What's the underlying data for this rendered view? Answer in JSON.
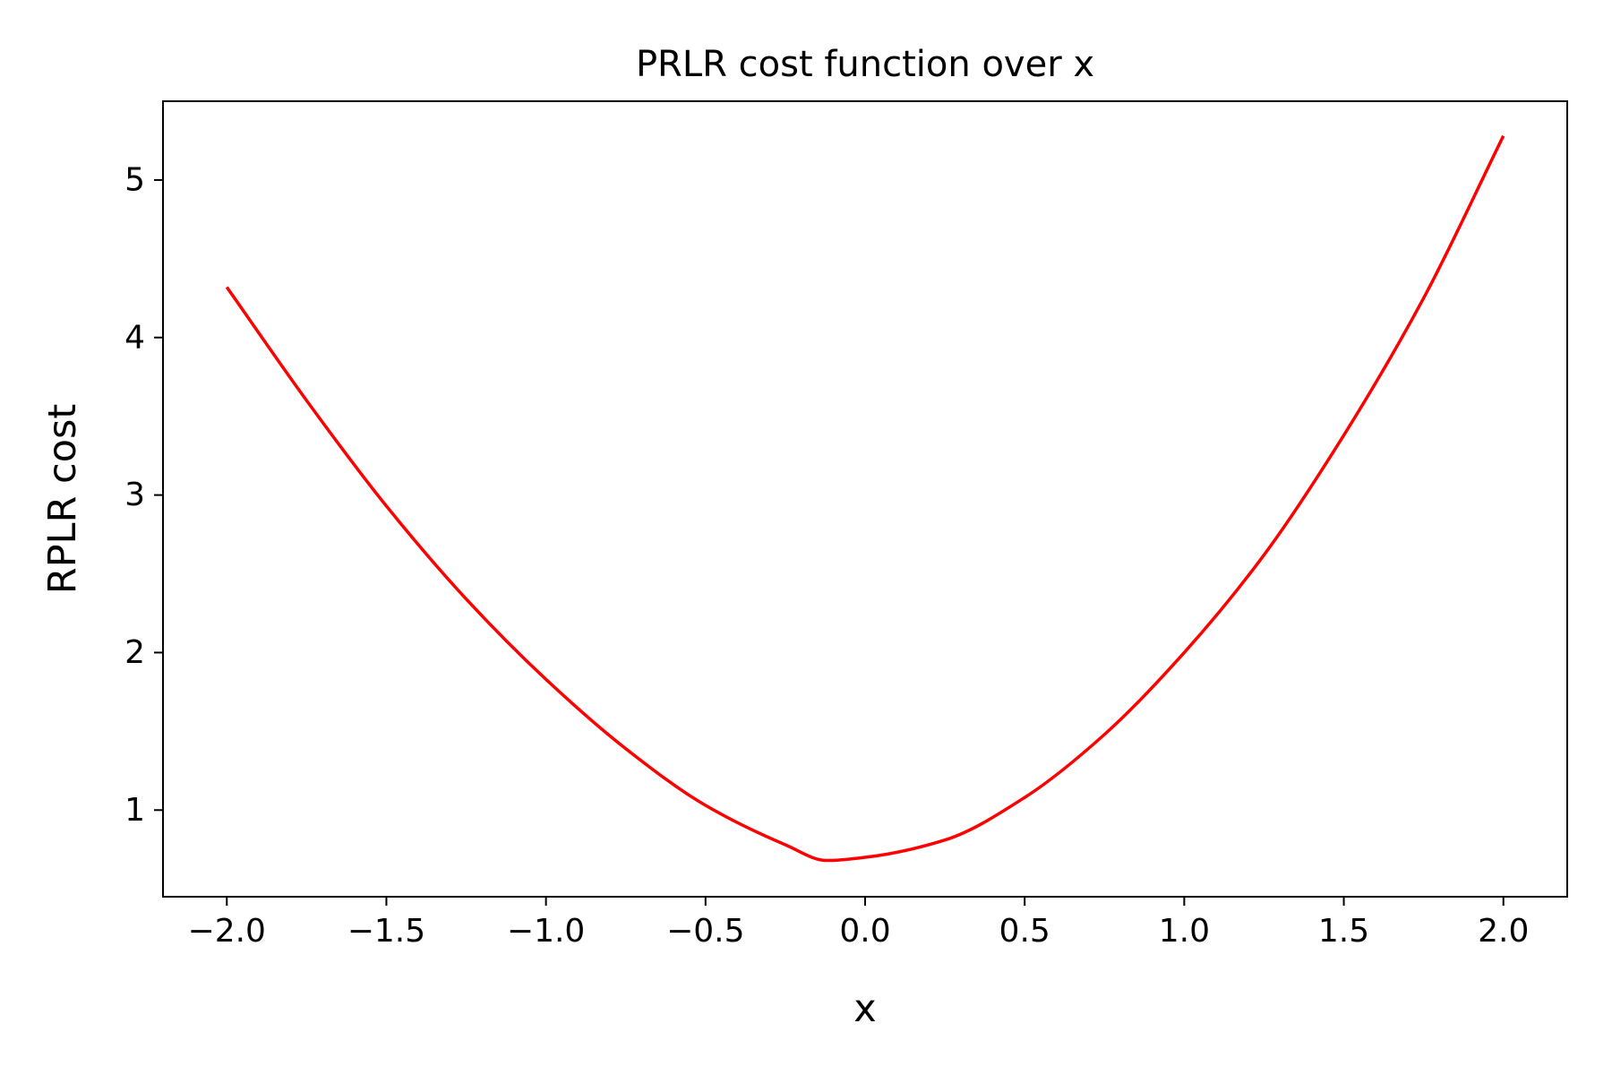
{
  "chart_data": {
    "type": "line",
    "title": "PRLR cost function over x",
    "xlabel": "x",
    "ylabel": "RPLR cost",
    "xlim": [
      -2.2,
      2.2
    ],
    "ylim": [
      0.45,
      5.5
    ],
    "grid": false,
    "legend": "none",
    "x_ticks": [
      -2.0,
      -1.5,
      -1.0,
      -0.5,
      0.0,
      0.5,
      1.0,
      1.5,
      2.0
    ],
    "x_tick_labels": [
      "−2.0",
      "−1.5",
      "−1.0",
      "−0.5",
      "0.0",
      "0.5",
      "1.0",
      "1.5",
      "2.0"
    ],
    "y_ticks": [
      1,
      2,
      3,
      4,
      5
    ],
    "y_tick_labels": [
      "1",
      "2",
      "3",
      "4",
      "5"
    ],
    "series": [
      {
        "color": "#ff0000",
        "x": [
          -2.0,
          -1.75,
          -1.5,
          -1.25,
          -1.0,
          -0.75,
          -0.5,
          -0.25,
          -0.12,
          0.0,
          0.25,
          0.5,
          0.75,
          1.0,
          1.25,
          1.5,
          1.75,
          2.0
        ],
        "y": [
          4.32,
          3.6,
          2.93,
          2.34,
          1.83,
          1.39,
          1.03,
          0.78,
          0.68,
          0.7,
          0.81,
          1.08,
          1.48,
          2.0,
          2.62,
          3.38,
          4.25,
          5.28
        ]
      }
    ]
  }
}
